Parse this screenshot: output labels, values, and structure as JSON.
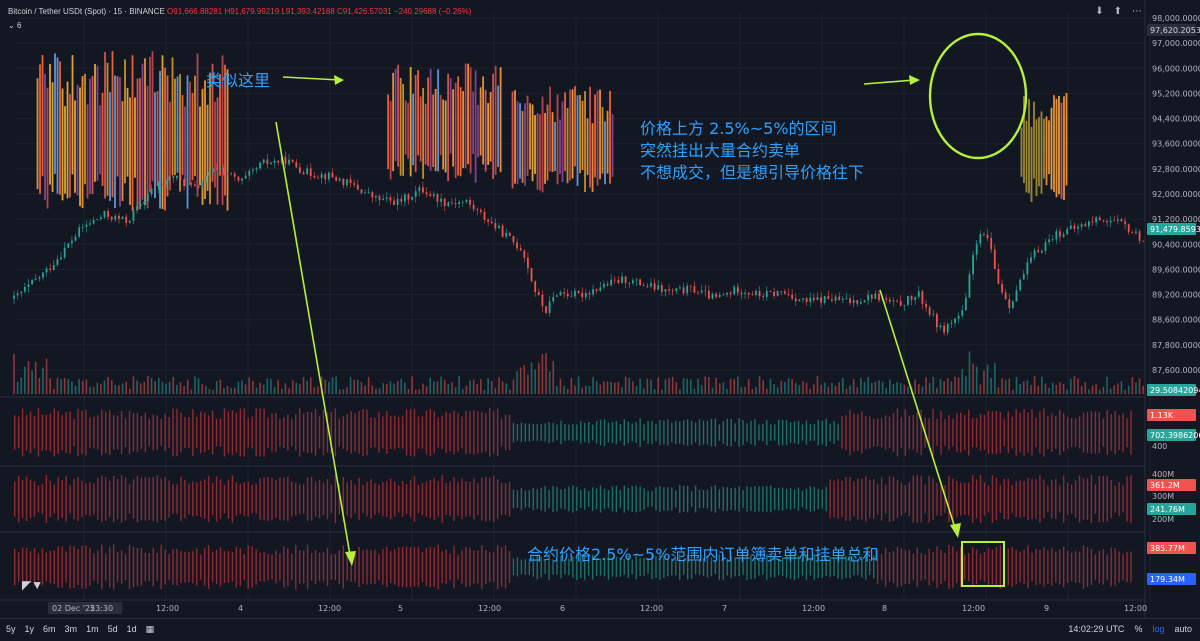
{
  "header": {
    "symbol": "Bitcoin / Tether USDt (Spot) · 15 · BINANCE",
    "open": "O91,666.88281",
    "high": "H91,679.99219",
    "low": "L91,393.42188",
    "close": "C91,426.57031",
    "change": "−240.29688 (−0.26%)",
    "indicator_count": "6"
  },
  "annotations": {
    "similar_here": "类似这里",
    "ask_wall_lines": [
      "价格上方 2.5%~5%的区间",
      "突然挂出大量合约卖单",
      "不想成交，但是想引导价格往下"
    ],
    "sum_note": "合约价格2.5%~5%范围内订单簿卖单和挂单总和"
  },
  "bottom_bar": {
    "ranges": [
      "5y",
      "1y",
      "6m",
      "3m",
      "1m",
      "5d",
      "1d"
    ],
    "calendar_icon": "calendar-icon",
    "time": "14:02:29 UTC",
    "percent": "%",
    "log": "log",
    "auto": "auto"
  },
  "colors": {
    "background": "#131722",
    "up": "#26a69a",
    "down": "#ef5350",
    "annotation": "#2ea2ff",
    "arrow": "#b7f03a",
    "bid_fill": "#1f6f66",
    "ask_fill": "#8e2a33"
  },
  "chart_data": {
    "type": "line",
    "pair": "BTC/USDT",
    "interval": "15",
    "x_ticks": [
      "02 Dec '25",
      "23:30",
      "12:00",
      "4",
      "12:00",
      "5",
      "12:00",
      "6",
      "12:00",
      "7",
      "12:00",
      "8",
      "12:00",
      "9",
      "12:00"
    ],
    "y_ticks": [
      "98,000.0000",
      "97,000.0000",
      "96,000.0000",
      "95,200.0000",
      "94,400.0000",
      "93,600.0000",
      "92,800.0000",
      "92,000.0000",
      "91,200.0000",
      "90,400.0000",
      "89,600.0000",
      "89,200.0000",
      "88,600.0000",
      "87,800.0000",
      "87,600.0000"
    ],
    "ylim": [
      86800,
      98600
    ],
    "last_price_label": "91,479.85938",
    "top_label": "97,620.20532",
    "volume_label": "29.50842094",
    "price_series": {
      "x": [
        0,
        3,
        6,
        8,
        10,
        12,
        14,
        16,
        18,
        20,
        22,
        24,
        26,
        28,
        30,
        32,
        34,
        36,
        38,
        40,
        42,
        44,
        45,
        46,
        47,
        48,
        50,
        52,
        54,
        56,
        58,
        60,
        62,
        64,
        66,
        68,
        70,
        72,
        74,
        76,
        78,
        80,
        82,
        84,
        85,
        86,
        87,
        88,
        90,
        92,
        94,
        96,
        98,
        100
      ],
      "y": [
        89700,
        90600,
        91900,
        92300,
        92100,
        93000,
        93500,
        93100,
        93800,
        93300,
        93900,
        94000,
        93600,
        93500,
        93200,
        92800,
        92700,
        93100,
        92700,
        92700,
        92100,
        91500,
        91200,
        90000,
        89300,
        89900,
        89800,
        90100,
        90300,
        90100,
        89900,
        90000,
        89700,
        90000,
        89800,
        89900,
        89600,
        89700,
        89600,
        89800,
        89500,
        89800,
        88700,
        89300,
        91500,
        91700,
        90200,
        89500,
        91000,
        91700,
        91900,
        92200,
        92000,
        91480
      ]
    },
    "ask_wall_bands": [
      {
        "x_start": 2,
        "x_end": 19,
        "y_low": 92400,
        "y_high": 97400
      },
      {
        "x_start": 33,
        "x_end": 43,
        "y_low": 93300,
        "y_high": 97000
      },
      {
        "x_start": 44,
        "x_end": 53,
        "y_low": 93000,
        "y_high": 96300
      },
      {
        "x_start": 89,
        "x_end": 93,
        "y_low": 92700,
        "y_high": 96200
      }
    ],
    "panes": [
      {
        "name": "",
        "labels": [
          "1.13K",
          "702.39862061",
          "400"
        ]
      },
      {
        "name": "",
        "labels": [
          "400M",
          "361.2M",
          "300M",
          "241.76M",
          "200M"
        ]
      },
      {
        "name": "",
        "labels": [
          "385.77M",
          "179.34M"
        ]
      }
    ]
  }
}
